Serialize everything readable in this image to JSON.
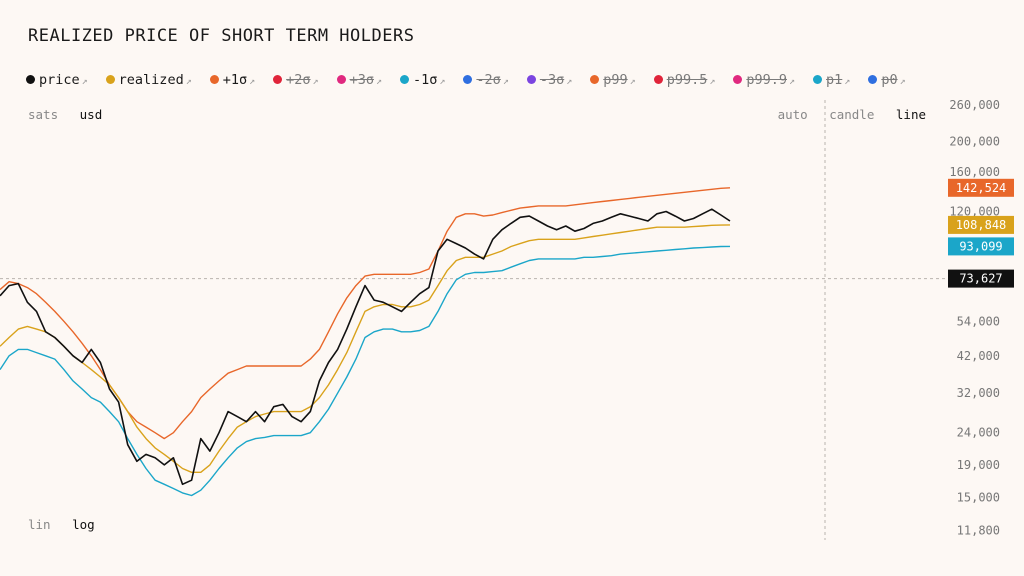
{
  "title": "REALIZED PRICE OF SHORT TERM HOLDERS",
  "legend": [
    {
      "label": "price",
      "color": "#111111",
      "active": true
    },
    {
      "label": "realized",
      "color": "#d9a21b",
      "active": true
    },
    {
      "label": "+1σ",
      "color": "#e8672a",
      "active": true
    },
    {
      "label": "+2σ",
      "color": "#e0243a",
      "active": false
    },
    {
      "label": "+3σ",
      "color": "#e0297f",
      "active": false
    },
    {
      "label": "-1σ",
      "color": "#1ba6c9",
      "active": true
    },
    {
      "label": "-2σ",
      "color": "#2f6fe0",
      "active": false
    },
    {
      "label": "-3σ",
      "color": "#7b45e0",
      "active": false
    },
    {
      "label": "p99",
      "color": "#e8672a",
      "active": false
    },
    {
      "label": "p99.5",
      "color": "#e0243a",
      "active": false
    },
    {
      "label": "p99.9",
      "color": "#e0297f",
      "active": false
    },
    {
      "label": "p1",
      "color": "#1ba6c9",
      "active": false
    },
    {
      "label": "p0",
      "color": "#2f6fe0",
      "active": false
    }
  ],
  "legend_arrow": "↗",
  "unit_toggle": {
    "options": [
      "sats",
      "usd"
    ],
    "active": "usd"
  },
  "scale_toggle": {
    "options": [
      "lin",
      "log"
    ],
    "active": "log"
  },
  "type_toggle": {
    "options": [
      "auto",
      "candle",
      "line"
    ],
    "active": "line"
  },
  "chart_data": {
    "type": "line",
    "yscale": "log",
    "ylim": [
      11000,
      270000
    ],
    "y_ticks": [
      260000,
      200000,
      160000,
      120000,
      73627,
      54000,
      42000,
      32000,
      24000,
      19000,
      15000,
      11800
    ],
    "y_tick_labels": [
      "260,000",
      "200,000",
      "160,000",
      "120,000",
      "73,627",
      "54,000",
      "42,000",
      "32,000",
      "24,000",
      "19,000",
      "15,000",
      "11,800"
    ],
    "badges": [
      {
        "label": "142,524",
        "value": 142524,
        "color": "#e8672a"
      },
      {
        "label": "108,848",
        "value": 108848,
        "color": "#d9a21b"
      },
      {
        "label": "93,099",
        "value": 93099,
        "color": "#1ba6c9"
      },
      {
        "label": "73,627",
        "value": 73627,
        "color": "#111111"
      }
    ],
    "crosshair_value": 73627,
    "x": [
      0,
      3,
      6,
      9,
      12,
      15,
      18,
      21,
      24,
      27,
      30,
      33,
      36,
      39,
      42,
      45,
      48,
      51,
      54,
      57,
      60,
      63,
      66,
      69,
      72,
      75,
      78,
      81,
      84,
      87,
      90,
      93,
      96,
      99,
      102,
      105,
      108,
      111,
      114,
      117,
      120,
      123,
      126,
      129,
      132,
      135,
      138,
      141,
      144,
      147,
      150,
      153,
      156,
      159,
      162,
      165,
      168,
      171,
      174,
      177,
      180,
      183,
      186,
      189,
      192,
      195,
      198,
      201,
      204,
      207,
      210,
      213,
      216,
      219,
      222,
      225,
      228,
      231,
      234,
      237,
      240
    ],
    "series": [
      {
        "name": "price",
        "color": "#111111",
        "values": [
          65000,
          70000,
          71000,
          62000,
          58000,
          50000,
          48000,
          45000,
          42000,
          40000,
          44000,
          40000,
          33000,
          30000,
          22000,
          19500,
          20500,
          20000,
          19000,
          20000,
          16500,
          17000,
          23000,
          21000,
          24000,
          28000,
          27000,
          26000,
          28000,
          26000,
          29000,
          29500,
          27000,
          26000,
          28000,
          35000,
          40000,
          44000,
          51000,
          60000,
          70000,
          63000,
          62000,
          60000,
          58000,
          62000,
          66000,
          69000,
          90000,
          98000,
          95000,
          92000,
          88000,
          85000,
          98000,
          105000,
          110000,
          115000,
          116000,
          112000,
          108000,
          105000,
          108000,
          104000,
          106000,
          110000,
          112000,
          115000,
          118000,
          116000,
          114000,
          112000,
          118000,
          120000,
          116000,
          112000,
          114000,
          118000,
          122000,
          117000,
          112000
        ]
      },
      {
        "name": "realized",
        "color": "#d9a21b",
        "values": [
          45000,
          48000,
          51000,
          52000,
          51000,
          50000,
          48000,
          45000,
          42000,
          40000,
          38000,
          36000,
          34000,
          31000,
          28000,
          25000,
          23000,
          21500,
          20500,
          19500,
          18500,
          18000,
          18000,
          19000,
          21000,
          23000,
          25000,
          26000,
          27000,
          27500,
          28000,
          28000,
          28000,
          28000,
          29000,
          31000,
          34000,
          38000,
          43000,
          50000,
          58000,
          60000,
          61000,
          61000,
          60000,
          60000,
          61000,
          63000,
          70000,
          78000,
          84000,
          86000,
          86000,
          86000,
          88000,
          90000,
          93000,
          95000,
          97000,
          98000,
          98000,
          98000,
          98000,
          98000,
          99000,
          100000,
          101000,
          102000,
          103000,
          104000,
          105000,
          106000,
          107000,
          107000,
          107000,
          107000,
          107500,
          108000,
          108500,
          108700,
          108848
        ]
      },
      {
        "name": "+1σ",
        "color": "#e8672a",
        "values": [
          68000,
          72000,
          71000,
          69000,
          66000,
          62000,
          58000,
          54000,
          50000,
          46000,
          42000,
          38000,
          34000,
          31000,
          28000,
          26000,
          25000,
          24000,
          23000,
          24000,
          26000,
          28000,
          31000,
          33000,
          35000,
          37000,
          38000,
          39000,
          39000,
          39000,
          39000,
          39000,
          39000,
          39000,
          41000,
          44000,
          50000,
          57000,
          64000,
          70000,
          75000,
          76000,
          76000,
          76000,
          76000,
          76000,
          77000,
          79000,
          90000,
          104000,
          115000,
          118000,
          118000,
          116000,
          117000,
          119000,
          121000,
          123000,
          124000,
          125000,
          125000,
          125000,
          125000,
          126000,
          127000,
          128000,
          129000,
          130000,
          131000,
          132000,
          133000,
          134000,
          135000,
          136000,
          137000,
          138000,
          139000,
          140000,
          141000,
          142000,
          142524
        ]
      },
      {
        "name": "-1σ",
        "color": "#1ba6c9",
        "values": [
          38000,
          42000,
          44000,
          44000,
          43000,
          42000,
          41000,
          38000,
          35000,
          33000,
          31000,
          30000,
          28000,
          26000,
          23000,
          20500,
          18500,
          17000,
          16500,
          16000,
          15500,
          15200,
          15800,
          17000,
          18500,
          20000,
          21500,
          22500,
          23000,
          23200,
          23500,
          23500,
          23500,
          23500,
          24000,
          26000,
          28500,
          32000,
          36000,
          41000,
          48000,
          50000,
          51000,
          51000,
          50000,
          50000,
          50500,
          52000,
          58000,
          66000,
          73000,
          76000,
          77000,
          77000,
          77500,
          78000,
          80000,
          82000,
          84000,
          85000,
          85000,
          85000,
          85000,
          85000,
          86000,
          86000,
          86500,
          87000,
          88000,
          88500,
          89000,
          89500,
          90000,
          90500,
          91000,
          91500,
          92000,
          92300,
          92700,
          93000,
          93099
        ]
      }
    ]
  }
}
